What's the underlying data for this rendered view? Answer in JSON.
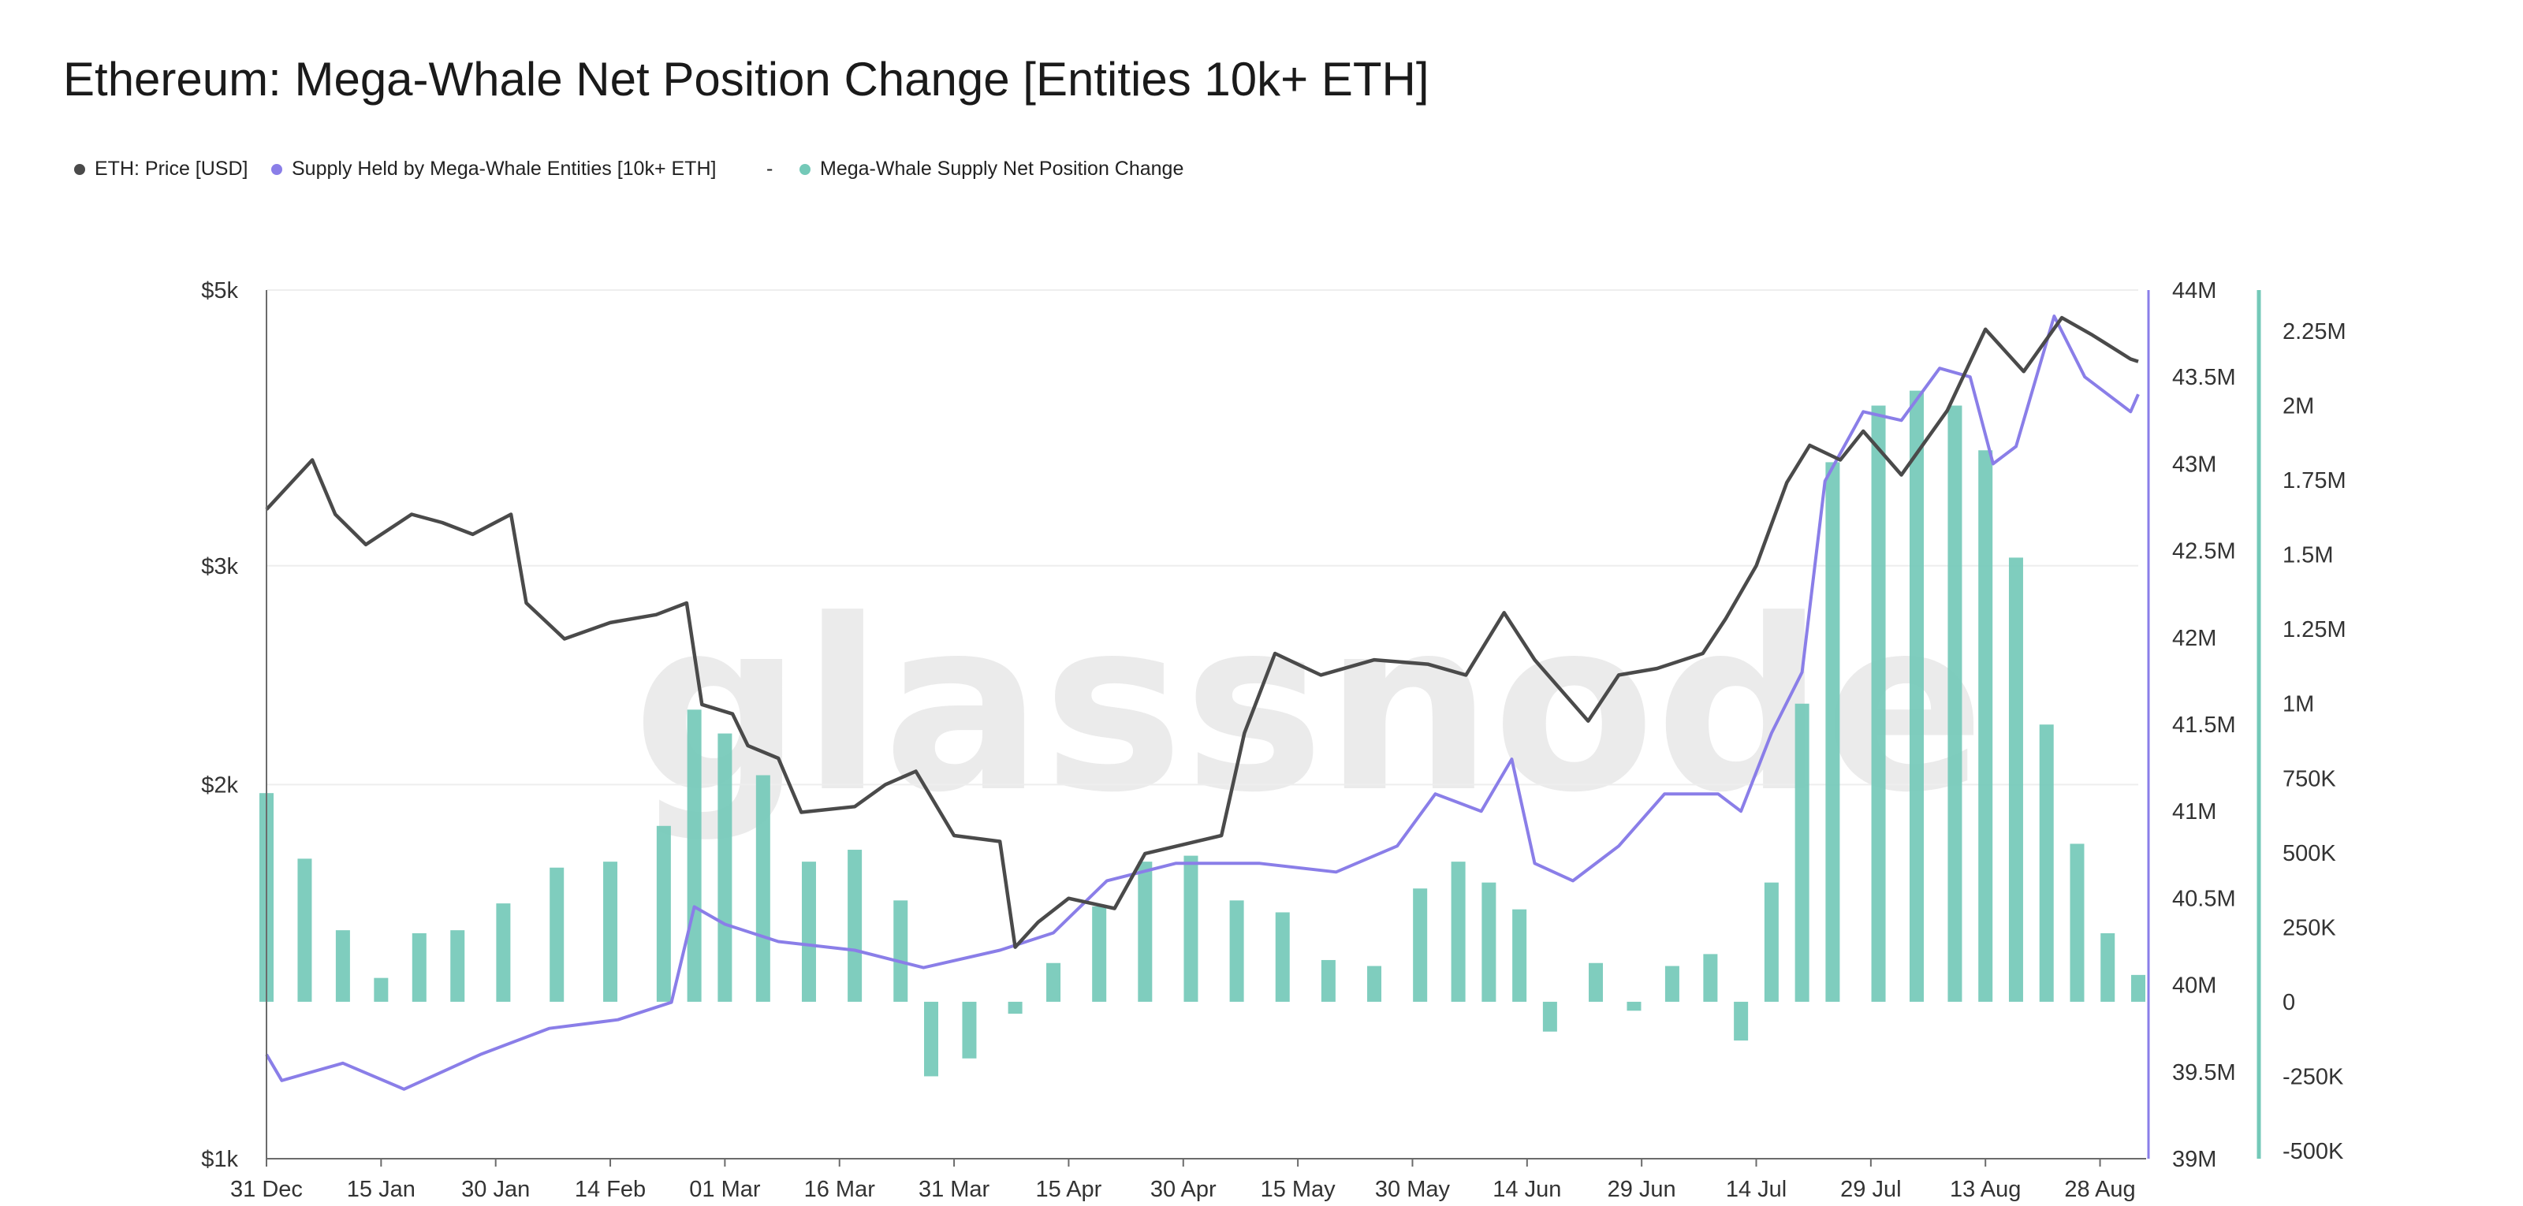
{
  "chart_data": {
    "title": "Ethereum: Mega-Whale Net Position Change [Entities 10k+ ETH]",
    "watermark": "glassnode",
    "type": "line+bar",
    "legend_position": "top-left",
    "legend": [
      {
        "label": "ETH: Price [USD]",
        "color": "#4a4a4a"
      },
      {
        "label": "Supply Held by Mega-Whale Entities [10k+ ETH]",
        "color": "#8a7ee8"
      },
      {
        "label": "-",
        "color": ""
      },
      {
        "label": "Mega-Whale Supply Net Position Change",
        "color": "#74c9b8"
      }
    ],
    "x_ticks": [
      "31 Dec",
      "15 Jan",
      "30 Jan",
      "14 Feb",
      "01 Mar",
      "16 Mar",
      "31 Mar",
      "15 Apr",
      "30 Apr",
      "15 May",
      "30 May",
      "14 Jun",
      "29 Jun",
      "14 Jul",
      "29 Jul",
      "13 Aug",
      "28 Aug"
    ],
    "x_range": [
      "2024-12-31",
      "2025-09-02"
    ],
    "left_axis": {
      "scale": "log",
      "range": [
        1000,
        5000
      ],
      "ticks": [
        "$1k",
        "$2k",
        "$3k",
        "$5k"
      ],
      "tick_values": [
        1000,
        2000,
        3000,
        5000
      ]
    },
    "right_axis_1": {
      "range": [
        39000000,
        44000000
      ],
      "ticks": [
        "39M",
        "39.5M",
        "40M",
        "40.5M",
        "41M",
        "41.5M",
        "42M",
        "42.5M",
        "43M",
        "43.5M",
        "44M"
      ],
      "color": "#8a7ee8"
    },
    "right_axis_2": {
      "range": [
        -500000,
        2250000
      ],
      "ticks": [
        "-500K",
        "-250K",
        "0",
        "250K",
        "500K",
        "750K",
        "1M",
        "1.25M",
        "1.5M",
        "1.75M",
        "2M",
        "2.25M"
      ],
      "color": "#74c9b8"
    },
    "series": [
      {
        "name": "ETH: Price [USD]",
        "color": "#4a4a4a",
        "axis": "left",
        "points": [
          [
            "2024-12-31",
            3330
          ],
          [
            "2025-01-06",
            3650
          ],
          [
            "2025-01-09",
            3300
          ],
          [
            "2025-01-13",
            3120
          ],
          [
            "2025-01-19",
            3300
          ],
          [
            "2025-01-23",
            3250
          ],
          [
            "2025-01-27",
            3180
          ],
          [
            "2025-02-01",
            3300
          ],
          [
            "2025-02-03",
            2800
          ],
          [
            "2025-02-08",
            2620
          ],
          [
            "2025-02-14",
            2700
          ],
          [
            "2025-02-20",
            2740
          ],
          [
            "2025-02-24",
            2800
          ],
          [
            "2025-02-26",
            2320
          ],
          [
            "2025-03-02",
            2280
          ],
          [
            "2025-03-04",
            2150
          ],
          [
            "2025-03-08",
            2100
          ],
          [
            "2025-03-11",
            1900
          ],
          [
            "2025-03-18",
            1920
          ],
          [
            "2025-03-22",
            2000
          ],
          [
            "2025-03-26",
            2050
          ],
          [
            "2025-03-31",
            1820
          ],
          [
            "2025-04-06",
            1800
          ],
          [
            "2025-04-08",
            1480
          ],
          [
            "2025-04-11",
            1550
          ],
          [
            "2025-04-15",
            1620
          ],
          [
            "2025-04-21",
            1590
          ],
          [
            "2025-04-25",
            1760
          ],
          [
            "2025-04-30",
            1790
          ],
          [
            "2025-05-05",
            1820
          ],
          [
            "2025-05-08",
            2200
          ],
          [
            "2025-05-12",
            2550
          ],
          [
            "2025-05-18",
            2450
          ],
          [
            "2025-05-25",
            2520
          ],
          [
            "2025-06-01",
            2500
          ],
          [
            "2025-06-06",
            2450
          ],
          [
            "2025-06-11",
            2750
          ],
          [
            "2025-06-15",
            2520
          ],
          [
            "2025-06-22",
            2250
          ],
          [
            "2025-06-26",
            2450
          ],
          [
            "2025-07-01",
            2480
          ],
          [
            "2025-07-07",
            2550
          ],
          [
            "2025-07-10",
            2720
          ],
          [
            "2025-07-14",
            3000
          ],
          [
            "2025-07-18",
            3500
          ],
          [
            "2025-07-21",
            3750
          ],
          [
            "2025-07-25",
            3650
          ],
          [
            "2025-07-28",
            3850
          ],
          [
            "2025-08-02",
            3550
          ],
          [
            "2025-08-08",
            4000
          ],
          [
            "2025-08-13",
            4650
          ],
          [
            "2025-08-18",
            4300
          ],
          [
            "2025-08-23",
            4750
          ],
          [
            "2025-08-27",
            4600
          ],
          [
            "2025-09-01",
            4400
          ],
          [
            "2025-09-02",
            4380
          ]
        ]
      },
      {
        "name": "Supply Held by Mega-Whale Entities [10k+ ETH]",
        "color": "#8a7ee8",
        "axis": "right_1",
        "points": [
          [
            "2024-12-31",
            39600000
          ],
          [
            "2025-01-02",
            39450000
          ],
          [
            "2025-01-10",
            39550000
          ],
          [
            "2025-01-18",
            39400000
          ],
          [
            "2025-01-28",
            39600000
          ],
          [
            "2025-02-06",
            39750000
          ],
          [
            "2025-02-15",
            39800000
          ],
          [
            "2025-02-22",
            39900000
          ],
          [
            "2025-02-25",
            40450000
          ],
          [
            "2025-03-01",
            40350000
          ],
          [
            "2025-03-08",
            40250000
          ],
          [
            "2025-03-18",
            40200000
          ],
          [
            "2025-03-27",
            40100000
          ],
          [
            "2025-04-06",
            40200000
          ],
          [
            "2025-04-13",
            40300000
          ],
          [
            "2025-04-20",
            40600000
          ],
          [
            "2025-04-29",
            40700000
          ],
          [
            "2025-05-10",
            40700000
          ],
          [
            "2025-05-20",
            40650000
          ],
          [
            "2025-05-28",
            40800000
          ],
          [
            "2025-06-02",
            41100000
          ],
          [
            "2025-06-08",
            41000000
          ],
          [
            "2025-06-12",
            41300000
          ],
          [
            "2025-06-15",
            40700000
          ],
          [
            "2025-06-20",
            40600000
          ],
          [
            "2025-06-26",
            40800000
          ],
          [
            "2025-07-02",
            41100000
          ],
          [
            "2025-07-09",
            41100000
          ],
          [
            "2025-07-12",
            41000000
          ],
          [
            "2025-07-16",
            41450000
          ],
          [
            "2025-07-20",
            41800000
          ],
          [
            "2025-07-23",
            42900000
          ],
          [
            "2025-07-28",
            43300000
          ],
          [
            "2025-08-02",
            43250000
          ],
          [
            "2025-08-07",
            43550000
          ],
          [
            "2025-08-11",
            43500000
          ],
          [
            "2025-08-14",
            43000000
          ],
          [
            "2025-08-17",
            43100000
          ],
          [
            "2025-08-22",
            43850000
          ],
          [
            "2025-08-26",
            43500000
          ],
          [
            "2025-09-01",
            43300000
          ],
          [
            "2025-09-02",
            43400000
          ]
        ]
      },
      {
        "name": "Mega-Whale Supply Net Position Change",
        "color": "#74c9b8",
        "axis": "right_2",
        "type": "bar",
        "points": [
          [
            "2024-12-31",
            700000
          ],
          [
            "2025-01-05",
            480000
          ],
          [
            "2025-01-10",
            240000
          ],
          [
            "2025-01-15",
            80000
          ],
          [
            "2025-01-20",
            230000
          ],
          [
            "2025-01-25",
            240000
          ],
          [
            "2025-01-31",
            330000
          ],
          [
            "2025-02-07",
            450000
          ],
          [
            "2025-02-14",
            470000
          ],
          [
            "2025-02-21",
            590000
          ],
          [
            "2025-02-25",
            980000
          ],
          [
            "2025-03-01",
            900000
          ],
          [
            "2025-03-06",
            760000
          ],
          [
            "2025-03-12",
            470000
          ],
          [
            "2025-03-18",
            510000
          ],
          [
            "2025-03-24",
            340000
          ],
          [
            "2025-03-28",
            -250000
          ],
          [
            "2025-04-02",
            -190000
          ],
          [
            "2025-04-08",
            -40000
          ],
          [
            "2025-04-13",
            130000
          ],
          [
            "2025-04-19",
            320000
          ],
          [
            "2025-04-25",
            470000
          ],
          [
            "2025-05-01",
            490000
          ],
          [
            "2025-05-07",
            340000
          ],
          [
            "2025-05-13",
            300000
          ],
          [
            "2025-05-19",
            140000
          ],
          [
            "2025-05-25",
            120000
          ],
          [
            "2025-05-31",
            380000
          ],
          [
            "2025-06-05",
            470000
          ],
          [
            "2025-06-09",
            400000
          ],
          [
            "2025-06-13",
            310000
          ],
          [
            "2025-06-17",
            -100000
          ],
          [
            "2025-06-23",
            130000
          ],
          [
            "2025-06-28",
            -30000
          ],
          [
            "2025-07-03",
            120000
          ],
          [
            "2025-07-08",
            160000
          ],
          [
            "2025-07-12",
            -130000
          ],
          [
            "2025-07-16",
            400000
          ],
          [
            "2025-07-20",
            1000000
          ],
          [
            "2025-07-24",
            1810000
          ],
          [
            "2025-07-30",
            2000000
          ],
          [
            "2025-08-04",
            2050000
          ],
          [
            "2025-08-09",
            2000000
          ],
          [
            "2025-08-13",
            1850000
          ],
          [
            "2025-08-17",
            1490000
          ],
          [
            "2025-08-21",
            930000
          ],
          [
            "2025-08-25",
            530000
          ],
          [
            "2025-08-29",
            230000
          ],
          [
            "2025-09-02",
            90000
          ]
        ]
      }
    ]
  }
}
